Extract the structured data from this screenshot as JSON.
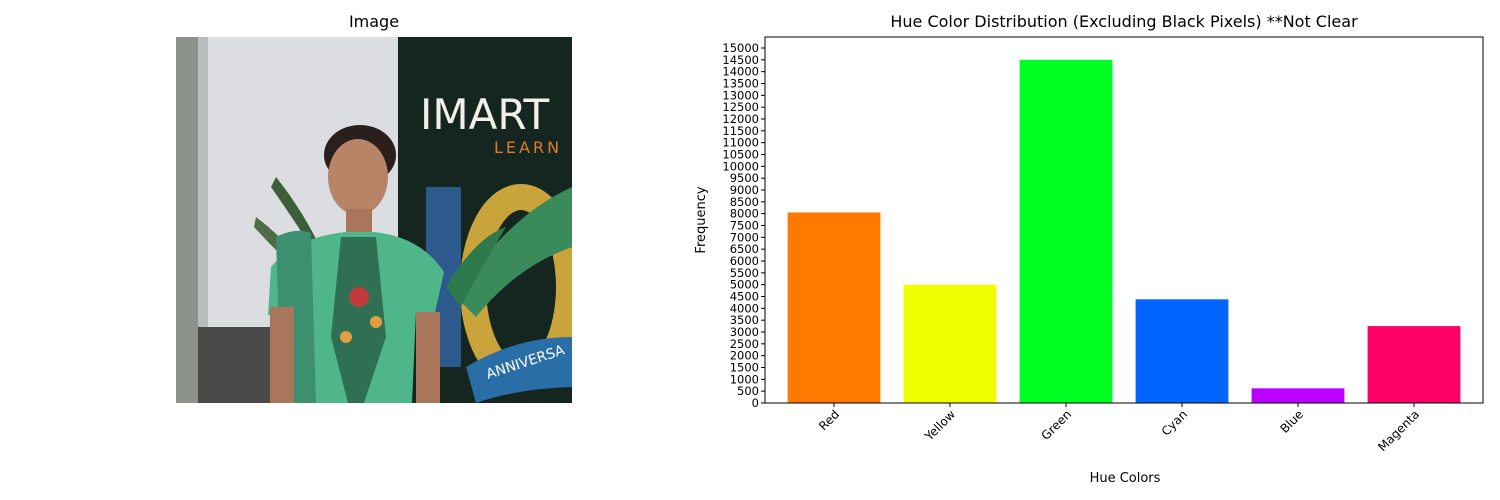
{
  "left_panel": {
    "title": "Image",
    "photo_banner_text": "IMART",
    "photo_banner_subtext": "LEARN",
    "photo_ribbon_text": "ANNIVERSA"
  },
  "chart_data": {
    "type": "bar",
    "title": "Hue Color Distribution (Excluding Black Pixels) **Not Clear",
    "xlabel": "Hue Colors",
    "ylabel": "Frequency",
    "categories": [
      "Red",
      "Yellow",
      "Green",
      "Cyan",
      "Blue",
      "Magenta"
    ],
    "values": [
      8050,
      5000,
      14500,
      4380,
      620,
      3250
    ],
    "colors": [
      "#ff7800",
      "#eeff00",
      "#00ff22",
      "#0066ff",
      "#bb00ff",
      "#ff0066"
    ],
    "ylim": [
      0,
      15000
    ],
    "yticks": [
      0,
      500,
      1000,
      1500,
      2000,
      2500,
      3000,
      3500,
      4000,
      4500,
      5000,
      5500,
      6000,
      6500,
      7000,
      7500,
      8000,
      8500,
      9000,
      9500,
      10000,
      10500,
      11000,
      11500,
      12000,
      12500,
      13000,
      13500,
      14000,
      14500,
      15000
    ],
    "grid": false,
    "xtick_rotation": 45
  }
}
